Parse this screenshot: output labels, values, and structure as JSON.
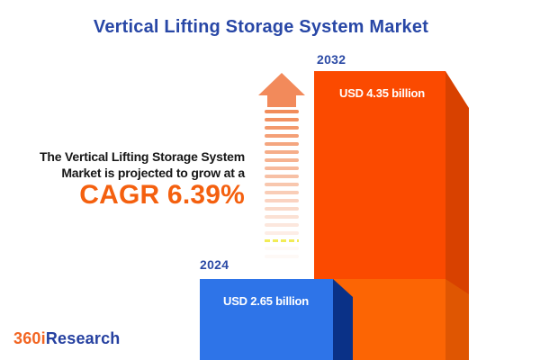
{
  "title": "Vertical Lifting Storage System Market",
  "headline": {
    "line1": "The Vertical Lifting Storage System",
    "line2": "Market is projected to grow at a",
    "cagr_label": "CAGR 6.39%"
  },
  "bars": {
    "b2024": {
      "year": "2024",
      "value_label": "USD 2.65 billion"
    },
    "b2032": {
      "year": "2032",
      "value_label": "USD 4.35 billion"
    }
  },
  "arrow": {
    "dash_count": 19,
    "yellow_dash_index": 16
  },
  "logo": {
    "prefix": "360i",
    "suffix": "Research"
  },
  "colors": {
    "title_blue": "#2847A6",
    "year_label_blue": "#2B4AA5",
    "headline_text": "#161616",
    "cagr_orange": "#F4600F",
    "bar_2032_front_upper": "#FB4A00",
    "bar_2032_front_lower": "#FC6504",
    "bar_2032_side_upper": "#D84100",
    "bar_2032_side_lower": "#DF5602",
    "bar_2024_front": "#2E74E8",
    "bar_2024_side": "#0A3187",
    "arrow_head": "#F28A5B",
    "arrow_dash": "#F0824C",
    "logo_orange": "#F26522",
    "logo_blue": "#2540A0",
    "value_text": "#FFFFFF",
    "background": "#FFFFFF"
  },
  "chart_data": {
    "type": "bar",
    "title": "Vertical Lifting Storage System Market",
    "categories": [
      "2024",
      "2032"
    ],
    "values": [
      2.65,
      4.35
    ],
    "unit": "USD billion",
    "data_labels": [
      "USD 2.65 billion",
      "USD 4.35 billion"
    ],
    "annotations": [
      "The Vertical Lifting Storage System Market is projected to grow at a CAGR 6.39%"
    ],
    "cagr_percent": 6.39,
    "xlabel": "",
    "ylabel": "",
    "grid": false,
    "legend": false,
    "style": "3d-infographic-bars"
  }
}
